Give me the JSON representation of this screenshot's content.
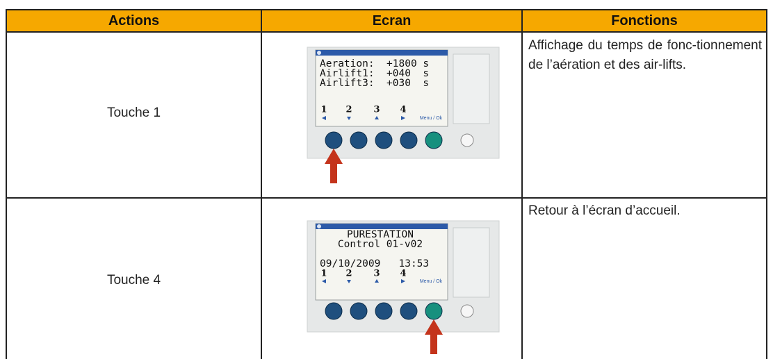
{
  "table": {
    "headers": [
      "Actions",
      "Ecran",
      "Fonctions"
    ],
    "rows": [
      {
        "action": "Touche 1",
        "screen": {
          "lines": [
            "Aeration:  +1800 s",
            "Airlift1:  +040  s",
            "Airlift3:  +030  s"
          ],
          "keys": [
            "1",
            "2",
            "3",
            "4"
          ],
          "menu": "Menu / Ok"
        },
        "function": "Affichage du temps de fonc-tionnement de l’aération et des air-lifts."
      },
      {
        "action": "Touche 4",
        "screen": {
          "lines": [
            "PURESTATION",
            "Control 01-v02",
            "09/10/2009   13:53"
          ],
          "keys": [
            "1",
            "2",
            "3",
            "4"
          ],
          "menu": "Menu / Ok"
        },
        "function": "Retour à l’écran d’accueil."
      }
    ]
  }
}
